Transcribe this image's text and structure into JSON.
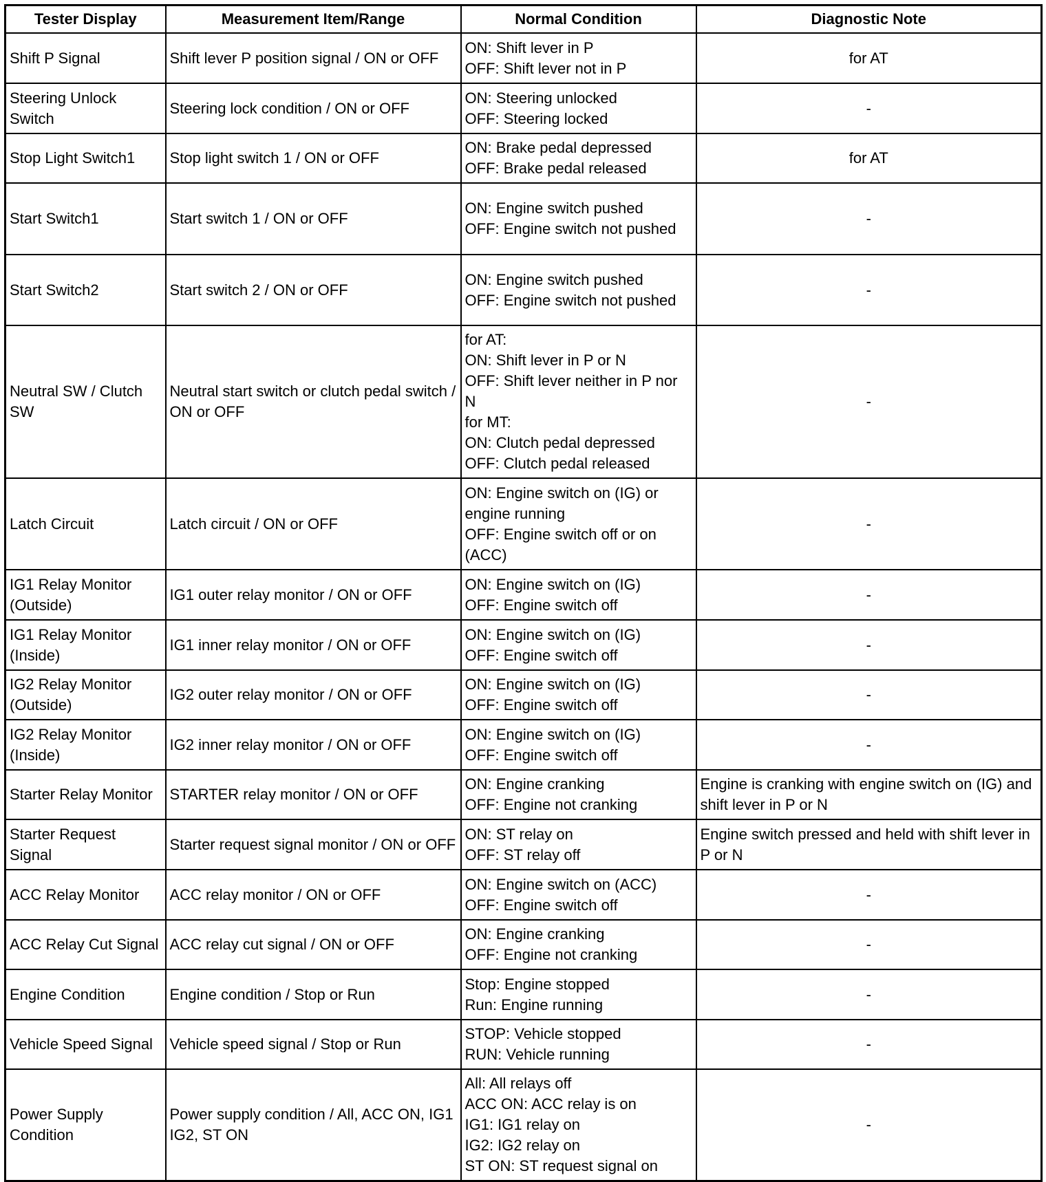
{
  "table": {
    "headers": [
      "Tester Display",
      "Measurement Item/Range",
      "Normal Condition",
      "Diagnostic Note"
    ],
    "rows": [
      {
        "display": "Shift P Signal",
        "item": "Shift lever P position signal / ON or OFF",
        "normal": "ON: Shift lever in P\nOFF: Shift lever not in P",
        "note": "for AT"
      },
      {
        "display": "Steering Unlock Switch",
        "item": "Steering lock condition / ON or OFF",
        "normal": "ON: Steering unlocked\nOFF: Steering locked",
        "note": "-"
      },
      {
        "display": "Stop Light Switch1",
        "item": "Stop light switch 1 / ON or OFF",
        "normal": "ON: Brake pedal depressed\nOFF: Brake pedal released",
        "note": "for AT"
      },
      {
        "display": "Start Switch1",
        "item": "Start switch 1 / ON or OFF",
        "normal": "ON: Engine switch pushed\nOFF: Engine switch not pushed",
        "note": "-"
      },
      {
        "display": "Start Switch2",
        "item": "Start switch 2 / ON or OFF",
        "normal": "ON: Engine switch pushed\nOFF: Engine switch not pushed",
        "note": "-"
      },
      {
        "display": "Neutral SW / Clutch SW",
        "item": "Neutral start switch or clutch pedal switch / ON or OFF",
        "normal": "for AT:\nON: Shift lever in P or N\nOFF: Shift lever neither in P nor N\nfor MT:\nON: Clutch pedal depressed\nOFF: Clutch pedal released",
        "note": "-"
      },
      {
        "display": "Latch Circuit",
        "item": "Latch circuit / ON or OFF",
        "normal": "ON: Engine switch on (IG) or engine running\nOFF: Engine switch off or on (ACC)",
        "note": "-"
      },
      {
        "display": "IG1 Relay Monitor (Outside)",
        "item": "IG1 outer relay monitor / ON or OFF",
        "normal": "ON: Engine switch on (IG)\nOFF: Engine switch off",
        "note": "-"
      },
      {
        "display": "IG1 Relay Monitor (Inside)",
        "item": "IG1 inner relay monitor / ON or OFF",
        "normal": "ON: Engine switch on (IG)\nOFF: Engine switch off",
        "note": "-"
      },
      {
        "display": "IG2 Relay Monitor (Outside)",
        "item": "IG2 outer relay monitor / ON or OFF",
        "normal": "ON: Engine switch on (IG)\nOFF: Engine switch off",
        "note": "-"
      },
      {
        "display": "IG2 Relay Monitor (Inside)",
        "item": "IG2 inner relay monitor / ON or OFF",
        "normal": "ON: Engine switch on (IG)\nOFF: Engine switch off",
        "note": "-"
      },
      {
        "display": "Starter Relay Monitor",
        "item": "STARTER relay monitor / ON or OFF",
        "normal": "ON: Engine cranking\nOFF: Engine not cranking",
        "note": "Engine is cranking with engine switch on (IG) and shift lever in P or N"
      },
      {
        "display": "Starter Request Signal",
        "item": "Starter request signal monitor / ON or OFF",
        "normal": "ON: ST relay on\nOFF: ST relay off",
        "note": "Engine switch pressed and held with shift lever in P or N"
      },
      {
        "display": "ACC Relay Monitor",
        "item": "ACC relay monitor / ON or OFF",
        "normal": "ON: Engine switch on (ACC)\nOFF: Engine switch off",
        "note": "-"
      },
      {
        "display": "ACC Relay Cut Signal",
        "item": "ACC relay cut signal / ON or OFF",
        "normal": "ON: Engine cranking\nOFF: Engine not cranking",
        "note": "-"
      },
      {
        "display": "Engine Condition",
        "item": "Engine condition / Stop or Run",
        "normal": "Stop: Engine stopped\nRun: Engine running",
        "note": "-"
      },
      {
        "display": "Vehicle Speed Signal",
        "item": "Vehicle speed signal / Stop or Run",
        "normal": "STOP: Vehicle stopped\nRUN: Vehicle running",
        "note": "-"
      },
      {
        "display": "Power Supply Condition",
        "item": "Power supply condition / All, ACC ON, IG1 IG2, ST ON",
        "normal": "All: All relays off\nACC ON: ACC relay is on\nIG1: IG1 relay on\nIG2: IG2 relay on\nST ON: ST request signal on",
        "note": "-"
      }
    ]
  }
}
